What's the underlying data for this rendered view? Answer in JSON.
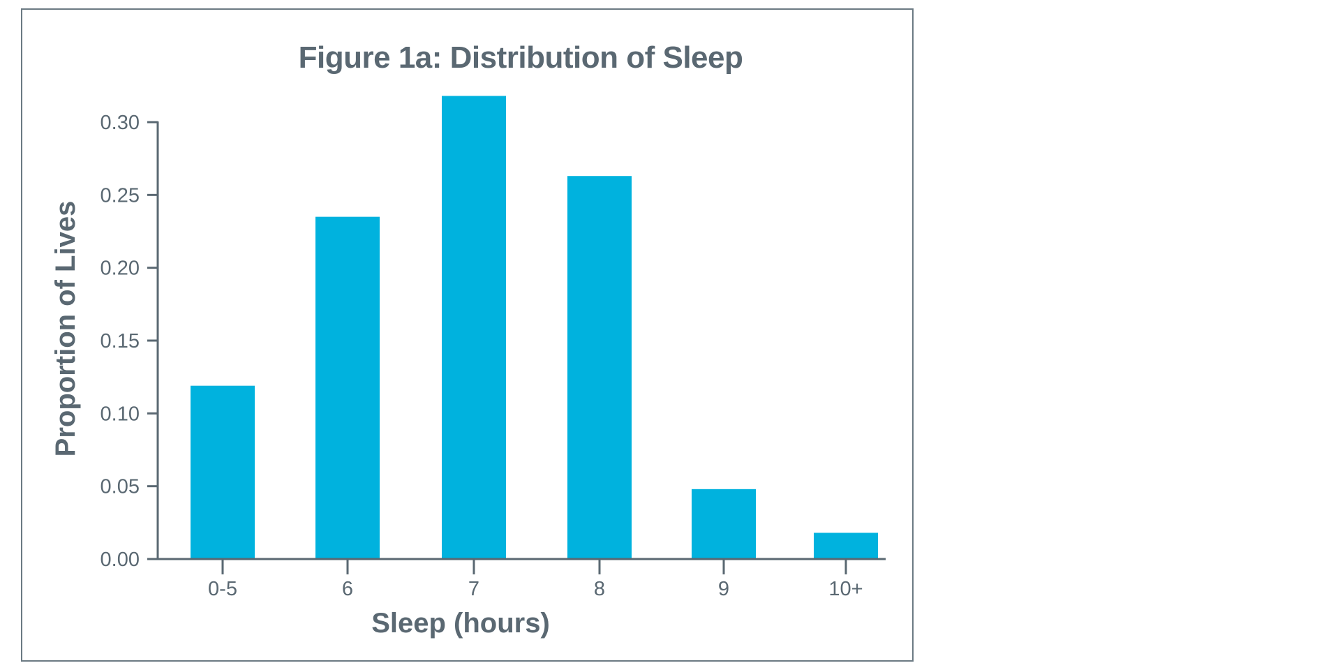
{
  "figure": {
    "title": "Figure 1a: Distribution of Sleep",
    "xlabel": "Sleep (hours)",
    "ylabel": "Proportion of Lives",
    "bar_color": "#00b2de",
    "text_color": "#5a6872",
    "frame_color": "#6b7a83"
  },
  "chart_data": {
    "type": "bar",
    "title": "Figure 1a: Distribution of Sleep",
    "xlabel": "Sleep (hours)",
    "ylabel": "Proportion of Lives",
    "categories": [
      "0-5",
      "6",
      "7",
      "8",
      "9",
      "10+"
    ],
    "values": [
      0.119,
      0.235,
      0.318,
      0.263,
      0.048,
      0.018
    ],
    "ylim": [
      0,
      0.3
    ],
    "yticks": [
      0.0,
      0.05,
      0.1,
      0.15,
      0.2,
      0.25,
      0.3
    ],
    "ytick_labels": [
      "0.00",
      "0.05",
      "0.10",
      "0.15",
      "0.20",
      "0.25",
      "0.30"
    ],
    "grid": false,
    "legend": null
  }
}
